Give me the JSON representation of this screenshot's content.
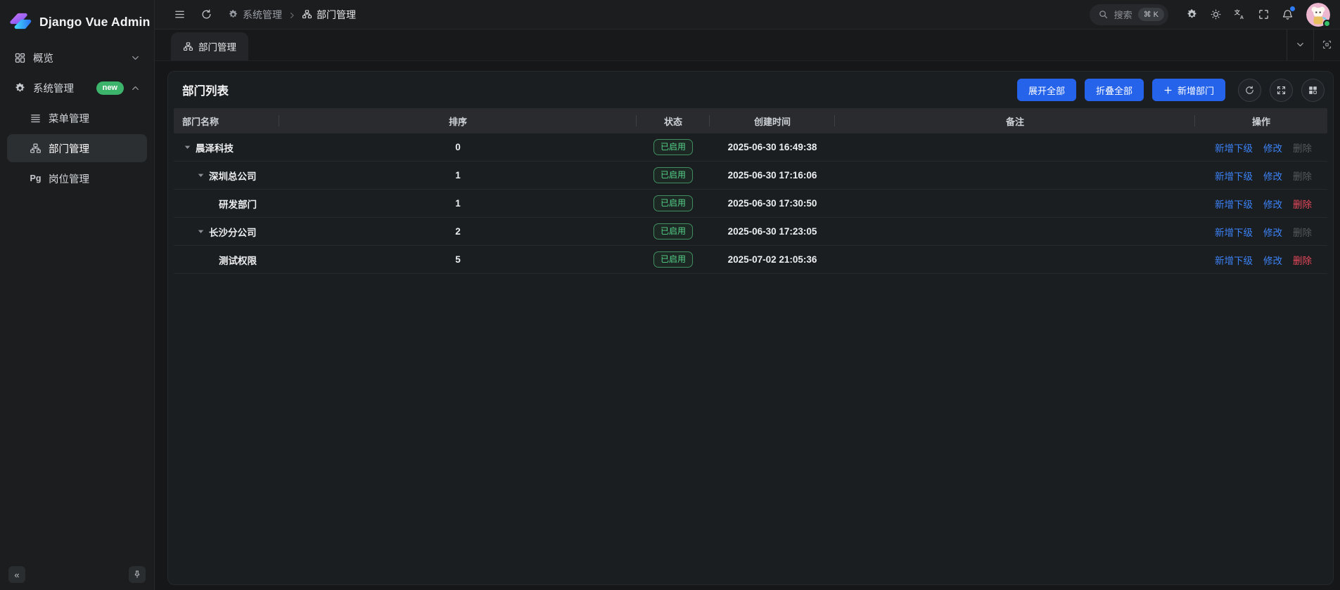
{
  "app": {
    "title": "Django Vue Admin"
  },
  "sidebar": {
    "items": [
      {
        "key": "overview",
        "label": "概览",
        "icon": "dashboard",
        "level": 0,
        "chevron": "down"
      },
      {
        "key": "system",
        "label": "系统管理",
        "icon": "gear",
        "level": 0,
        "chevron": "up",
        "badge": "new"
      },
      {
        "key": "menu-mgmt",
        "label": "菜单管理",
        "icon": "list",
        "level": 1
      },
      {
        "key": "dept-mgmt",
        "label": "部门管理",
        "icon": "sitemap",
        "level": 1,
        "active": true
      },
      {
        "key": "post-mgmt",
        "label": "岗位管理",
        "icon": "pg",
        "level": 1,
        "icon_text": "Pg"
      }
    ],
    "collapse_glyph": "«"
  },
  "topbar": {
    "breadcrumb": [
      {
        "label": "系统管理",
        "icon": "gear"
      },
      {
        "label": "部门管理",
        "icon": "sitemap"
      }
    ],
    "search": {
      "placeholder": "搜索",
      "shortcut": "⌘ K"
    }
  },
  "tabbar": {
    "active_tab": "部门管理"
  },
  "panel": {
    "title": "部门列表",
    "buttons": {
      "expand_all": "展开全部",
      "collapse_all": "折叠全部",
      "add": "新增部门"
    }
  },
  "table": {
    "columns": [
      "部门名称",
      "排序",
      "状态",
      "创建时间",
      "备注",
      "操作"
    ],
    "action_labels": {
      "add_child": "新增下级",
      "edit": "修改",
      "delete": "删除"
    },
    "rows": [
      {
        "name": "晨泽科技",
        "level": 0,
        "expandable": true,
        "sort": "0",
        "status": "已启用",
        "created": "2025-06-30 16:49:38",
        "remark": "",
        "delete_enabled": false
      },
      {
        "name": "深圳总公司",
        "level": 1,
        "expandable": true,
        "sort": "1",
        "status": "已启用",
        "created": "2025-06-30 17:16:06",
        "remark": "",
        "delete_enabled": false
      },
      {
        "name": "研发部门",
        "level": 2,
        "expandable": false,
        "sort": "1",
        "status": "已启用",
        "created": "2025-06-30 17:30:50",
        "remark": "",
        "delete_enabled": true
      },
      {
        "name": "长沙分公司",
        "level": 1,
        "expandable": true,
        "sort": "2",
        "status": "已启用",
        "created": "2025-06-30 17:23:05",
        "remark": "",
        "delete_enabled": false
      },
      {
        "name": "测试权限",
        "level": 2,
        "expandable": false,
        "sort": "5",
        "status": "已启用",
        "created": "2025-07-02 21:05:36",
        "remark": "",
        "delete_enabled": true
      }
    ]
  },
  "colors": {
    "accent_blue": "#2563eb",
    "link_blue": "#3b82f6",
    "danger_red": "#e5485b",
    "status_green": "#55d187",
    "badge_green": "#3db46b",
    "notification_blue": "#2e7bf6"
  }
}
